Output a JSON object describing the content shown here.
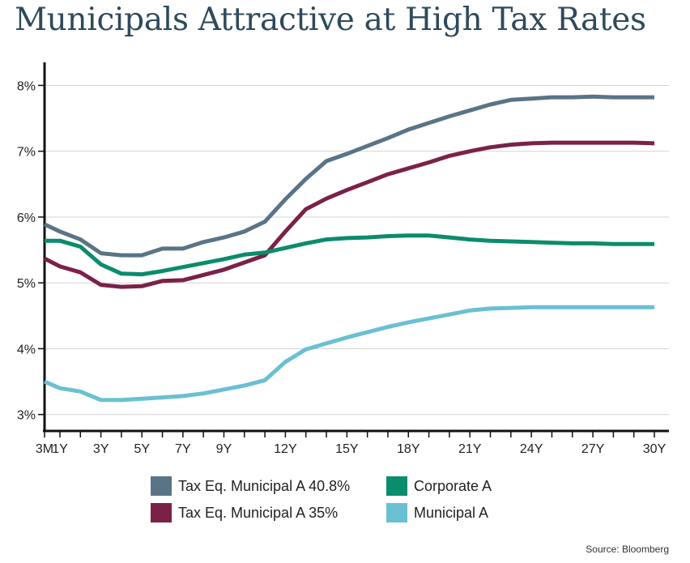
{
  "title": "Municipals Attractive at High Tax Rates",
  "source": "Source: Bloomberg",
  "chart_data": {
    "type": "line",
    "title": "Municipals Attractive at High Tax Rates",
    "xlabel": "",
    "ylabel": "",
    "ylim": [
      2.75,
      8.35
    ],
    "y_ticks": [
      "3%",
      "4%",
      "5%",
      "6%",
      "7%",
      "8%"
    ],
    "y_tick_values": [
      3,
      4,
      5,
      6,
      7,
      8
    ],
    "x_tick_labels": [
      "3M",
      "1Y",
      "3Y",
      "5Y",
      "7Y",
      "9Y",
      "12Y",
      "15Y",
      "18Y",
      "21Y",
      "24Y",
      "27Y",
      "30Y"
    ],
    "x_tick_values": [
      0.25,
      1,
      3,
      5,
      7,
      9,
      12,
      15,
      18,
      21,
      24,
      27,
      30
    ],
    "grid": true,
    "legend_position": "bottom",
    "x": [
      0.25,
      1,
      2,
      3,
      4,
      5,
      6,
      7,
      8,
      9,
      10,
      11,
      12,
      13,
      14,
      15,
      16,
      17,
      18,
      19,
      20,
      21,
      22,
      23,
      24,
      25,
      26,
      27,
      28,
      29,
      30
    ],
    "series": [
      {
        "name": "Tax Eq. Municipal A 40.8%",
        "color": "#5a7487",
        "values": [
          5.89,
          5.78,
          5.66,
          5.45,
          5.42,
          5.42,
          5.52,
          5.52,
          5.62,
          5.69,
          5.78,
          5.93,
          6.27,
          6.58,
          6.85,
          6.96,
          7.08,
          7.2,
          7.33,
          7.43,
          7.53,
          7.62,
          7.71,
          7.78,
          7.8,
          7.82,
          7.82,
          7.83,
          7.82,
          7.82,
          7.82
        ]
      },
      {
        "name": "Tax Eq. Municipal A 35%",
        "color": "#7b2148",
        "values": [
          5.37,
          5.25,
          5.16,
          4.97,
          4.94,
          4.95,
          5.03,
          5.04,
          5.12,
          5.2,
          5.31,
          5.42,
          5.78,
          6.12,
          6.28,
          6.41,
          6.53,
          6.65,
          6.74,
          6.83,
          6.93,
          7.0,
          7.06,
          7.1,
          7.12,
          7.13,
          7.13,
          7.13,
          7.13,
          7.13,
          7.12
        ]
      },
      {
        "name": "Corporate A",
        "color": "#0b8c6c",
        "values": [
          5.64,
          5.64,
          5.55,
          5.28,
          5.14,
          5.13,
          5.18,
          5.24,
          5.3,
          5.36,
          5.43,
          5.46,
          5.53,
          5.6,
          5.66,
          5.68,
          5.69,
          5.71,
          5.72,
          5.72,
          5.69,
          5.66,
          5.64,
          5.63,
          5.62,
          5.61,
          5.6,
          5.6,
          5.59,
          5.59,
          5.59
        ]
      },
      {
        "name": "Municipal A",
        "color": "#6ac0d3",
        "values": [
          3.5,
          3.4,
          3.35,
          3.22,
          3.22,
          3.24,
          3.26,
          3.28,
          3.32,
          3.38,
          3.44,
          3.52,
          3.8,
          3.99,
          4.08,
          4.17,
          4.25,
          4.33,
          4.4,
          4.46,
          4.52,
          4.58,
          4.61,
          4.62,
          4.63,
          4.63,
          4.63,
          4.63,
          4.63,
          4.63,
          4.63
        ]
      }
    ]
  }
}
